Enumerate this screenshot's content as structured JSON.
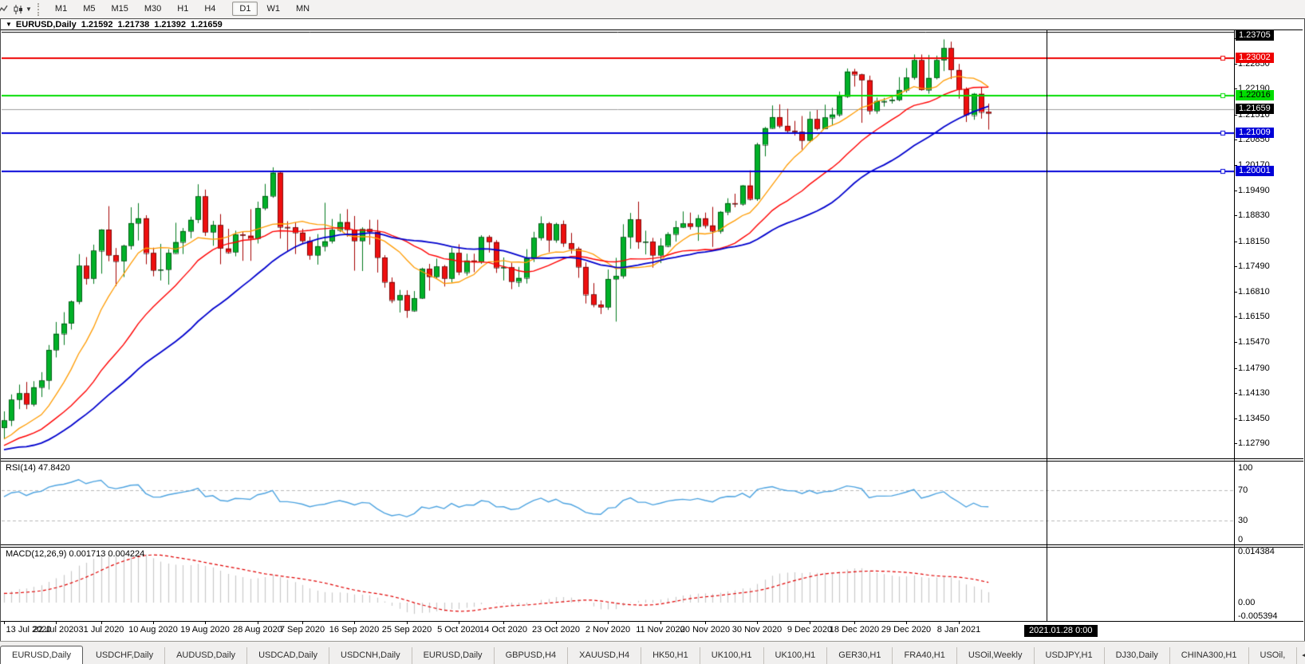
{
  "toolbar": {
    "timeframes": [
      "M1",
      "M5",
      "M15",
      "M30",
      "H1",
      "H4",
      "D1",
      "W1",
      "MN"
    ],
    "active_timeframe": "D1"
  },
  "title": {
    "symbol": "EURUSD,Daily",
    "open": "1.21592",
    "high": "1.21738",
    "low": "1.21392",
    "close": "1.21659"
  },
  "chart_data": {
    "type": "candlestick",
    "symbol": "EURUSD",
    "timeframe": "Daily",
    "price_axis": {
      "min": 1.12395,
      "max": 1.23763,
      "ticks": [
        1.2353,
        1.2285,
        1.2219,
        1.2151,
        1.2085,
        1.2017,
        1.1949,
        1.1883,
        1.1815,
        1.1749,
        1.1681,
        1.1615,
        1.1547,
        1.1479,
        1.1413,
        1.1345,
        1.1279
      ]
    },
    "badges": [
      {
        "v": 1.23705,
        "bg": "#000000",
        "fg": "#ffffff"
      },
      {
        "v": 1.23002,
        "bg": "#ee0000",
        "fg": "#ffffff"
      },
      {
        "v": 1.22016,
        "bg": "#00dd00",
        "fg": "#000000"
      },
      {
        "v": 1.21659,
        "bg": "#000000",
        "fg": "#ffffff"
      },
      {
        "v": 1.21009,
        "bg": "#0000d8",
        "fg": "#ffffff"
      },
      {
        "v": 1.20001,
        "bg": "#0000d8",
        "fg": "#ffffff"
      }
    ],
    "hlines": [
      {
        "price": 1.23705,
        "color": "#000000",
        "w": 1,
        "handle": false
      },
      {
        "price": 1.23002,
        "color": "#ee0000",
        "w": 2,
        "handle": true
      },
      {
        "price": 1.22016,
        "color": "#00dd00",
        "w": 2,
        "handle": true
      },
      {
        "price": 1.21009,
        "color": "#0000d8",
        "w": 2,
        "handle": true
      },
      {
        "price": 1.20001,
        "color": "#0000d8",
        "w": 2,
        "handle": true
      }
    ],
    "current_price": 1.21659,
    "colors": {
      "up": "#00b128",
      "up_edge": "#007a1c",
      "down": "#ee0f0f",
      "down_edge": "#a50000",
      "ma_fast": "#ff9b00",
      "ma_mid": "#ff0000",
      "ma_slow": "#0000cd",
      "rsi": "#4da3e0",
      "macd_hist": "#c9c9c9",
      "macd_signal": "#e00000",
      "level_dash": "#b9b9b9"
    },
    "ma": [
      {
        "period": 10,
        "color": "#ff9b00",
        "w": 1.3
      },
      {
        "period": 21,
        "color": "#ff0000",
        "w": 1.4
      },
      {
        "period": 34,
        "color": "#0000cd",
        "w": 1.8
      }
    ],
    "rsi": {
      "label": "RSI(14) 47.8420",
      "period": 14,
      "levels": [
        70,
        30
      ],
      "ticks": [
        100,
        70,
        30,
        0
      ]
    },
    "macd": {
      "label": "MACD(12,26,9) 0.001713 0.004224",
      "fast": 12,
      "slow": 26,
      "signal": 9,
      "tick_labels": [
        "0.014384",
        "0.00",
        "-0.005394"
      ],
      "tick_values": [
        0.014384,
        0,
        -0.005394
      ]
    },
    "dates": [
      [
        "13 Jul 2020",
        0
      ],
      [
        "22 Jul 2020",
        7
      ],
      [
        "31 Jul 2020",
        13
      ],
      [
        "10 Aug 2020",
        20
      ],
      [
        "19 Aug 2020",
        27
      ],
      [
        "28 Aug 2020",
        34
      ],
      [
        "7 Sep 2020",
        40
      ],
      [
        "16 Sep 2020",
        47
      ],
      [
        "25 Sep 2020",
        54
      ],
      [
        "5 Oct 2020",
        61
      ],
      [
        "14 Oct 2020",
        67
      ],
      [
        "23 Oct 2020",
        74
      ],
      [
        "2 Nov 2020",
        81
      ],
      [
        "11 Nov 2020",
        88
      ],
      [
        "20 Nov 2020",
        94
      ],
      [
        "30 Nov 2020",
        101
      ],
      [
        "9 Dec 2020",
        108
      ],
      [
        "18 Dec 2020",
        114
      ],
      [
        "29 Dec 2020",
        121
      ],
      [
        "8 Jan 2021",
        128
      ]
    ],
    "vline": {
      "bar_index": 139.8,
      "label": "2021.01.28 0:00"
    },
    "prepend_closes": [
      1.082,
      1.085,
      1.088,
      1.091,
      1.0895,
      1.093,
      1.096,
      1.099,
      1.101,
      1.0985,
      1.102,
      1.106,
      1.11,
      1.114,
      1.118,
      1.123,
      1.129,
      1.135,
      1.139,
      1.1422,
      1.138,
      1.133,
      1.128,
      1.13,
      1.134,
      1.13,
      1.126,
      1.122,
      1.118,
      1.1168,
      1.12,
      1.124,
      1.122,
      1.125,
      1.123,
      1.119,
      1.121,
      1.125,
      1.127,
      1.124,
      1.122,
      1.1245,
      1.127,
      1.13,
      1.133,
      1.131,
      1.128,
      1.125,
      1.127,
      1.13,
      1.132,
      1.129,
      1.127,
      1.1285,
      1.1302
    ],
    "candles": [
      [
        1.132,
        1.1364,
        1.129,
        1.134
      ],
      [
        1.134,
        1.1409,
        1.1325,
        1.1395
      ],
      [
        1.1395,
        1.1435,
        1.137,
        1.1412
      ],
      [
        1.1412,
        1.1442,
        1.137,
        1.1383
      ],
      [
        1.1383,
        1.1444,
        1.1377,
        1.1428
      ],
      [
        1.1428,
        1.1468,
        1.1402,
        1.1446
      ],
      [
        1.1446,
        1.154,
        1.1422,
        1.1527
      ],
      [
        1.1527,
        1.1601,
        1.1507,
        1.157
      ],
      [
        1.157,
        1.1627,
        1.154,
        1.1597
      ],
      [
        1.1597,
        1.1658,
        1.1581,
        1.1655
      ],
      [
        1.1655,
        1.1781,
        1.1648,
        1.175
      ],
      [
        1.175,
        1.1773,
        1.17,
        1.1716
      ],
      [
        1.1716,
        1.1806,
        1.1702,
        1.179
      ],
      [
        1.179,
        1.1847,
        1.1729,
        1.1846
      ],
      [
        1.1846,
        1.1908,
        1.1762,
        1.1778
      ],
      [
        1.1778,
        1.1797,
        1.1696,
        1.1762
      ],
      [
        1.1762,
        1.1806,
        1.172,
        1.1803
      ],
      [
        1.1803,
        1.1905,
        1.1793,
        1.1863
      ],
      [
        1.1863,
        1.1916,
        1.1817,
        1.1876
      ],
      [
        1.1876,
        1.1884,
        1.1754,
        1.1784
      ],
      [
        1.1784,
        1.1798,
        1.1722,
        1.1738
      ],
      [
        1.1738,
        1.1808,
        1.1711,
        1.174
      ],
      [
        1.174,
        1.1794,
        1.17,
        1.1784
      ],
      [
        1.1784,
        1.1864,
        1.1782,
        1.1813
      ],
      [
        1.1813,
        1.185,
        1.1781,
        1.1842
      ],
      [
        1.1842,
        1.188,
        1.1823,
        1.1872
      ],
      [
        1.1872,
        1.1966,
        1.1863,
        1.1934
      ],
      [
        1.1934,
        1.1952,
        1.1829,
        1.1839
      ],
      [
        1.1839,
        1.1869,
        1.1803,
        1.1858
      ],
      [
        1.1858,
        1.1887,
        1.1754,
        1.1796
      ],
      [
        1.1796,
        1.1848,
        1.1782,
        1.1786
      ],
      [
        1.1786,
        1.1843,
        1.1775,
        1.1833
      ],
      [
        1.1833,
        1.184,
        1.1763,
        1.183
      ],
      [
        1.183,
        1.19,
        1.1763,
        1.1822
      ],
      [
        1.1822,
        1.192,
        1.1809,
        1.1903
      ],
      [
        1.1903,
        1.1967,
        1.1897,
        1.1935
      ],
      [
        1.1935,
        1.2011,
        1.193,
        1.1997
      ],
      [
        1.1997,
        1.2,
        1.1822,
        1.1853
      ],
      [
        1.1853,
        1.1868,
        1.1789,
        1.1852
      ],
      [
        1.1852,
        1.1865,
        1.1781,
        1.1838
      ],
      [
        1.1838,
        1.1848,
        1.1809,
        1.1816
      ],
      [
        1.1816,
        1.1827,
        1.1766,
        1.1778
      ],
      [
        1.1778,
        1.1834,
        1.1753,
        1.1802
      ],
      [
        1.1802,
        1.1917,
        1.1788,
        1.1815
      ],
      [
        1.1815,
        1.1874,
        1.1809,
        1.1845
      ],
      [
        1.1845,
        1.1888,
        1.1839,
        1.1866
      ],
      [
        1.1866,
        1.19,
        1.1827,
        1.1846
      ],
      [
        1.1846,
        1.1882,
        1.1737,
        1.1816
      ],
      [
        1.1816,
        1.1852,
        1.1736,
        1.1847
      ],
      [
        1.1847,
        1.1872,
        1.1806,
        1.184
      ],
      [
        1.184,
        1.1872,
        1.1732,
        1.1772
      ],
      [
        1.1772,
        1.1778,
        1.1692,
        1.1707
      ],
      [
        1.1707,
        1.1719,
        1.1651,
        1.1659
      ],
      [
        1.1659,
        1.1686,
        1.1626,
        1.1672
      ],
      [
        1.1672,
        1.1685,
        1.1612,
        1.1631
      ],
      [
        1.1631,
        1.1683,
        1.1628,
        1.1664
      ],
      [
        1.1664,
        1.1745,
        1.1662,
        1.1742
      ],
      [
        1.1742,
        1.1755,
        1.1684,
        1.1721
      ],
      [
        1.1721,
        1.1769,
        1.1717,
        1.1748
      ],
      [
        1.1748,
        1.1752,
        1.1695,
        1.1716
      ],
      [
        1.1716,
        1.1798,
        1.1706,
        1.1784
      ],
      [
        1.1784,
        1.1807,
        1.1725,
        1.1733
      ],
      [
        1.1733,
        1.1782,
        1.1724,
        1.1764
      ],
      [
        1.1764,
        1.1782,
        1.1733,
        1.1761
      ],
      [
        1.1761,
        1.1831,
        1.1755,
        1.1826
      ],
      [
        1.1826,
        1.1831,
        1.1785,
        1.1813
      ],
      [
        1.1813,
        1.1818,
        1.1731,
        1.1745
      ],
      [
        1.1745,
        1.1772,
        1.1711,
        1.1746
      ],
      [
        1.1746,
        1.1758,
        1.1688,
        1.1708
      ],
      [
        1.1708,
        1.1747,
        1.1694,
        1.1718
      ],
      [
        1.1718,
        1.1794,
        1.1703,
        1.177
      ],
      [
        1.177,
        1.184,
        1.176,
        1.1824
      ],
      [
        1.1824,
        1.1881,
        1.1817,
        1.1862
      ],
      [
        1.1862,
        1.1866,
        1.1786,
        1.1818
      ],
      [
        1.1818,
        1.1864,
        1.1811,
        1.186
      ],
      [
        1.186,
        1.187,
        1.18,
        1.181
      ],
      [
        1.181,
        1.1837,
        1.1782,
        1.1795
      ],
      [
        1.1795,
        1.18,
        1.1718,
        1.1747
      ],
      [
        1.1747,
        1.1759,
        1.165,
        1.1674
      ],
      [
        1.1674,
        1.1704,
        1.164,
        1.1647
      ],
      [
        1.1647,
        1.1658,
        1.1622,
        1.164
      ],
      [
        1.164,
        1.174,
        1.1633,
        1.1715
      ],
      [
        1.1715,
        1.1771,
        1.1602,
        1.1723
      ],
      [
        1.1723,
        1.186,
        1.1716,
        1.1826
      ],
      [
        1.1826,
        1.189,
        1.1795,
        1.1873
      ],
      [
        1.1873,
        1.192,
        1.1795,
        1.1813
      ],
      [
        1.1813,
        1.1843,
        1.178,
        1.1814
      ],
      [
        1.1814,
        1.1824,
        1.1745,
        1.1778
      ],
      [
        1.1778,
        1.1823,
        1.1757,
        1.1803
      ],
      [
        1.1803,
        1.1839,
        1.1799,
        1.1834
      ],
      [
        1.1834,
        1.1869,
        1.1814,
        1.1852
      ],
      [
        1.1852,
        1.1894,
        1.185,
        1.1862
      ],
      [
        1.1862,
        1.1891,
        1.1846,
        1.1854
      ],
      [
        1.1854,
        1.1885,
        1.1816,
        1.1876
      ],
      [
        1.1876,
        1.1891,
        1.1849,
        1.1857
      ],
      [
        1.1857,
        1.1906,
        1.18,
        1.1842
      ],
      [
        1.1842,
        1.1895,
        1.1835,
        1.1893
      ],
      [
        1.1893,
        1.1929,
        1.1884,
        1.1916
      ],
      [
        1.1916,
        1.1941,
        1.1905,
        1.1914
      ],
      [
        1.1914,
        1.1964,
        1.1909,
        1.1963
      ],
      [
        1.1963,
        1.2003,
        1.1923,
        1.1927
      ],
      [
        1.1927,
        1.2076,
        1.1922,
        1.2071
      ],
      [
        1.2071,
        1.2118,
        1.204,
        1.2115
      ],
      [
        1.2115,
        1.2175,
        1.2113,
        1.2144
      ],
      [
        1.2144,
        1.2178,
        1.2115,
        1.2121
      ],
      [
        1.2121,
        1.2166,
        1.2102,
        1.2108
      ],
      [
        1.2108,
        1.2134,
        1.2095,
        1.2105
      ],
      [
        1.2105,
        1.2147,
        1.2058,
        1.2082
      ],
      [
        1.2082,
        1.2159,
        1.2076,
        1.2139
      ],
      [
        1.2139,
        1.2163,
        1.2109,
        1.2113
      ],
      [
        1.2113,
        1.2177,
        1.2112,
        1.2143
      ],
      [
        1.2143,
        1.2169,
        1.2123,
        1.2151
      ],
      [
        1.2151,
        1.2212,
        1.2145,
        1.2199
      ],
      [
        1.2199,
        1.2273,
        1.2195,
        1.2265
      ],
      [
        1.2265,
        1.2272,
        1.2225,
        1.2257
      ],
      [
        1.2257,
        1.2259,
        1.2129,
        1.2242
      ],
      [
        1.2242,
        1.2254,
        1.2151,
        1.2161
      ],
      [
        1.2161,
        1.2196,
        1.2153,
        1.2187
      ],
      [
        1.2187,
        1.2195,
        1.2172,
        1.2187
      ],
      [
        1.2187,
        1.2198,
        1.218,
        1.219
      ],
      [
        1.219,
        1.225,
        1.2186,
        1.2216
      ],
      [
        1.2216,
        1.2274,
        1.2209,
        1.2249
      ],
      [
        1.2249,
        1.231,
        1.2243,
        1.2295
      ],
      [
        1.2295,
        1.231,
        1.2214,
        1.2216
      ],
      [
        1.2216,
        1.2309,
        1.2206,
        1.2248
      ],
      [
        1.2248,
        1.2307,
        1.2244,
        1.2295
      ],
      [
        1.2295,
        1.235,
        1.2266,
        1.2327
      ],
      [
        1.2327,
        1.2344,
        1.2245,
        1.2269
      ],
      [
        1.2269,
        1.2285,
        1.2193,
        1.2218
      ],
      [
        1.2218,
        1.2223,
        1.2131,
        1.215
      ],
      [
        1.215,
        1.2208,
        1.2137,
        1.2206
      ],
      [
        1.2206,
        1.2223,
        1.214,
        1.2158
      ],
      [
        1.2158,
        1.218,
        1.2111,
        1.2154
      ]
    ]
  },
  "tabs": {
    "items": [
      "EURUSD,Daily",
      "USDCHF,Daily",
      "AUDUSD,Daily",
      "USDCAD,Daily",
      "USDCNH,Daily",
      "EURUSD,Daily",
      "GBPUSD,H4",
      "XAUUSD,H4",
      "HK50,H1",
      "UK100,H1",
      "UK100,H1",
      "GER30,H1",
      "FRA40,H1",
      "USOil,Weekly",
      "USDJPY,H1",
      "DJ30,Daily",
      "CHINA300,H1",
      "USOil,"
    ],
    "active": 0,
    "scroll_left_glyph": "◄"
  }
}
